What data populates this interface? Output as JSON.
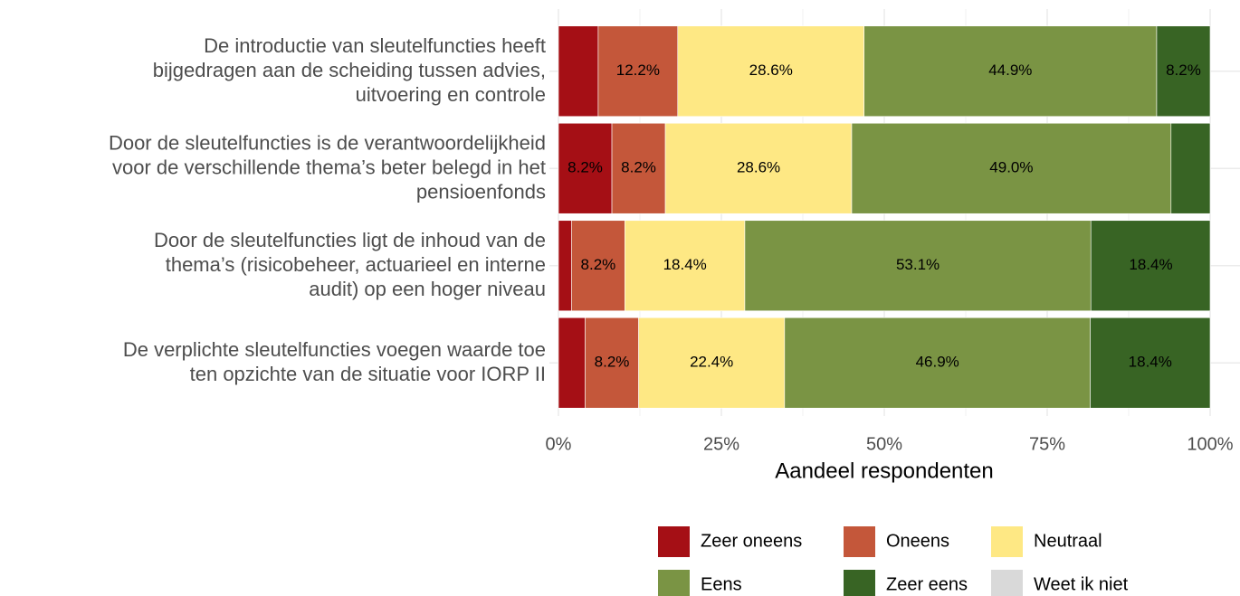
{
  "chart_data": {
    "type": "stacked-bar-horizontal",
    "categories": [
      "De introductie van sleutelfuncties heeft\nbijgedragen aan de scheiding tussen advies,\nuitvoering en controle",
      "Door de sleutelfuncties is de verantwoordelijkheid\nvoor de verschillende thema’s beter belegd in het\npensioenfonds",
      "Door de sleutelfuncties ligt de inhoud van de\nthema’s (risicobeheer, actuarieel en interne\naudit) op een hoger niveau",
      "De verplichte sleutelfuncties voegen waarde toe\nten opzichte van de situatie voor IORP II"
    ],
    "series": [
      {
        "name": "Zeer oneens",
        "color": "#a50f15",
        "values": [
          6.1,
          8.2,
          2.0,
          4.1
        ],
        "value_labels": [
          null,
          "8.2%",
          null,
          null
        ]
      },
      {
        "name": "Oneens",
        "color": "#c4573a",
        "values": [
          12.2,
          8.2,
          8.2,
          8.2
        ],
        "value_labels": [
          "12.2%",
          "8.2%",
          "8.2%",
          "8.2%"
        ]
      },
      {
        "name": "Neutraal",
        "color": "#fee884",
        "values": [
          28.6,
          28.6,
          18.4,
          22.4
        ],
        "value_labels": [
          "28.6%",
          "28.6%",
          "18.4%",
          "22.4%"
        ]
      },
      {
        "name": "Eens",
        "color": "#7a9444",
        "values": [
          44.9,
          49.0,
          53.1,
          46.9
        ],
        "value_labels": [
          "44.9%",
          "49.0%",
          "53.1%",
          "46.9%"
        ]
      },
      {
        "name": "Zeer eens",
        "color": "#386424",
        "values": [
          8.2,
          6.1,
          18.4,
          18.4
        ],
        "value_labels": [
          "8.2%",
          null,
          "18.4%",
          "18.4%"
        ]
      },
      {
        "name": "Weet ik niet",
        "color": "#d9d9d9",
        "values": [
          0,
          0,
          0,
          0
        ],
        "value_labels": [
          null,
          null,
          null,
          null
        ]
      }
    ],
    "xlabel": "Aandeel respondenten",
    "xlim": [
      0,
      100
    ],
    "xticks": [
      {
        "value": 0,
        "label": "0%"
      },
      {
        "value": 25,
        "label": "25%"
      },
      {
        "value": 50,
        "label": "50%"
      },
      {
        "value": 75,
        "label": "75%"
      },
      {
        "value": 100,
        "label": "100%"
      }
    ],
    "grid": true
  }
}
